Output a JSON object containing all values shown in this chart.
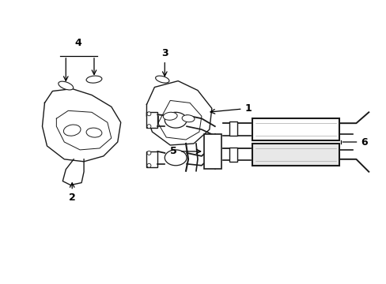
{
  "bg_color": "#ffffff",
  "line_color": "#1a1a1a",
  "gray": "#888888",
  "fig_width": 4.89,
  "fig_height": 3.6,
  "dpi": 100
}
